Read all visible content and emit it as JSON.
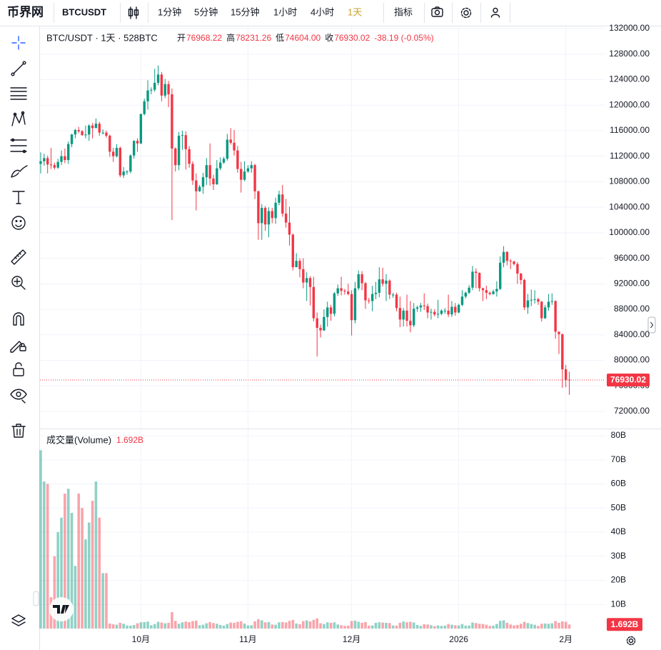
{
  "toolbar": {
    "logo": "币界网",
    "symbol": "BTCUSDT",
    "intervals": [
      "1分钟",
      "5分钟",
      "15分钟",
      "1小时",
      "4小时",
      "1天"
    ],
    "active_interval": 5,
    "indicators": "指标"
  },
  "chart_data": {
    "type": "candlestick",
    "title": "BTC/USDT · 1天 · 528BTC",
    "legend": [
      {
        "key": "开",
        "value": "76968.22"
      },
      {
        "key": "高",
        "value": "78231.26"
      },
      {
        "key": "低",
        "value": "74604.00"
      },
      {
        "key": "收",
        "value": "76930.02"
      }
    ],
    "change": "-38.19 (-0.05%)",
    "up_color": "#089981",
    "down_color": "#f23645",
    "grid": true,
    "categories": [
      null,
      null,
      null,
      null,
      null,
      null,
      null,
      null,
      null,
      null,
      null,
      null,
      null,
      null,
      null,
      null,
      null,
      null,
      null,
      null,
      null,
      null,
      null,
      null,
      null,
      null,
      null,
      null,
      null,
      "10月",
      null,
      null,
      null,
      null,
      null,
      null,
      null,
      null,
      null,
      null,
      null,
      null,
      null,
      null,
      null,
      null,
      null,
      null,
      null,
      null,
      null,
      null,
      null,
      null,
      null,
      null,
      null,
      null,
      null,
      null,
      "11月",
      null,
      null,
      null,
      null,
      null,
      null,
      null,
      null,
      null,
      null,
      null,
      null,
      null,
      null,
      null,
      null,
      null,
      null,
      null,
      null,
      null,
      null,
      null,
      null,
      null,
      null,
      null,
      null,
      null,
      "12月",
      null,
      null,
      null,
      null,
      null,
      null,
      null,
      null,
      null,
      null,
      null,
      null,
      null,
      null,
      null,
      null,
      null,
      null,
      null,
      null,
      null,
      null,
      null,
      null,
      null,
      null,
      null,
      null,
      null,
      null,
      "2026",
      null,
      null,
      null,
      null,
      null,
      null,
      null,
      null,
      null,
      null,
      null,
      null,
      null,
      null,
      null,
      null,
      null,
      null,
      null,
      null,
      null,
      null,
      null,
      null,
      null,
      null,
      null,
      null,
      null,
      null,
      "2月",
      null
    ],
    "open": [
      110800,
      111200,
      111700,
      110700,
      110600,
      110200,
      111100,
      112000,
      111400,
      113900,
      115400,
      116100,
      115900,
      115300,
      115400,
      116800,
      116400,
      117100,
      115700,
      115700,
      115200,
      112700,
      112000,
      113300,
      109000,
      109600,
      109600,
      112100,
      114400,
      114000,
      118600,
      120600,
      122300,
      122400,
      123500,
      124800,
      121500,
      123300,
      121700,
      113200,
      110600,
      115200,
      115300,
      113100,
      110800,
      108200,
      106500,
      107200,
      108700,
      110600,
      108500,
      107600,
      110100,
      111000,
      111600,
      114600,
      114100,
      112900,
      110000,
      108300,
      109600,
      110100,
      110600,
      106500,
      101500,
      103900,
      101300,
      103400,
      102300,
      104700,
      106000,
      103000,
      101600,
      99700,
      94600,
      95600,
      94300,
      92200,
      92900,
      91500,
      86600,
      85100,
      84700,
      86800,
      88300,
      87300,
      90500,
      91300,
      90900,
      90800,
      90400,
      86300,
      91300,
      93500,
      92100,
      89400,
      89300,
      90400,
      90600,
      92700,
      92000,
      92500,
      90300,
      90300,
      88200,
      86400,
      87800,
      86200,
      85500,
      88100,
      88300,
      88600,
      88500,
      87500,
      87600,
      87200,
      87300,
      87800,
      87800,
      87200,
      88400,
      87500,
      88700,
      90000,
      90600,
      91400,
      93900,
      93700,
      91300,
      91000,
      90600,
      90400,
      90800,
      91200,
      95300,
      97000,
      95600,
      95500,
      95100,
      93600,
      92600,
      88300,
      89400,
      89500,
      89600,
      89200,
      86600,
      88300,
      89200,
      89300,
      84500,
      84100,
      78600,
      76968.22
    ],
    "high": [
      112600,
      112400,
      112100,
      113300,
      111000,
      111600,
      112900,
      113200,
      114300,
      115500,
      116300,
      116600,
      116100,
      116800,
      117000,
      117200,
      117900,
      117400,
      116200,
      116000,
      115400,
      113300,
      113900,
      113500,
      110300,
      109800,
      112300,
      114500,
      114800,
      118700,
      121000,
      123900,
      122800,
      125700,
      126200,
      125200,
      124100,
      123800,
      122600,
      113400,
      115800,
      116000,
      115900,
      113600,
      111200,
      109300,
      107500,
      109400,
      111700,
      114000,
      109100,
      111400,
      111800,
      111900,
      115500,
      116400,
      116100,
      113600,
      111100,
      111200,
      110600,
      111200,
      110800,
      106600,
      104500,
      104200,
      104000,
      103900,
      105500,
      106600,
      107500,
      105300,
      104100,
      99900,
      96800,
      96000,
      96000,
      93800,
      93200,
      93100,
      87500,
      85600,
      88000,
      89200,
      88700,
      90700,
      91900,
      93100,
      91200,
      92000,
      91000,
      92300,
      94100,
      94000,
      92300,
      89800,
      91700,
      92300,
      94600,
      94500,
      93500,
      92700,
      90600,
      90600,
      90000,
      88200,
      90300,
      89300,
      89000,
      88600,
      89000,
      90500,
      88900,
      88100,
      88000,
      89500,
      88000,
      88200,
      90300,
      89300,
      89000,
      88900,
      91000,
      90800,
      91800,
      94800,
      94400,
      93800,
      91400,
      91700,
      90800,
      91100,
      92400,
      96300,
      97900,
      97100,
      95900,
      95600,
      95400,
      93700,
      92800,
      90400,
      91100,
      91000,
      89800,
      89300,
      88700,
      90400,
      90500,
      89400,
      84500,
      84200,
      79300,
      78231.26
    ],
    "low": [
      109300,
      110500,
      109300,
      110000,
      109900,
      110000,
      110600,
      110900,
      110800,
      113400,
      114800,
      115600,
      115200,
      114800,
      114400,
      114800,
      116400,
      115200,
      115400,
      114900,
      111900,
      111100,
      111800,
      108700,
      108600,
      109100,
      109300,
      111600,
      112700,
      113900,
      118400,
      119300,
      121700,
      122100,
      123100,
      120600,
      121100,
      119700,
      102000,
      109600,
      109800,
      113000,
      109900,
      110200,
      107500,
      103500,
      106400,
      106100,
      107500,
      107400,
      106700,
      107500,
      109800,
      110800,
      111300,
      113800,
      112100,
      109400,
      106300,
      108100,
      109400,
      109400,
      105300,
      98900,
      98900,
      100300,
      99300,
      101500,
      101400,
      104300,
      102500,
      100800,
      98000,
      94100,
      94600,
      93000,
      91300,
      89300,
      88600,
      86100,
      80600,
      83600,
      84600,
      85300,
      86200,
      86900,
      90100,
      90200,
      90300,
      90200,
      83900,
      85800,
      91000,
      91000,
      88100,
      88900,
      87700,
      89600,
      89900,
      91600,
      89300,
      89600,
      89800,
      87700,
      85200,
      85300,
      85300,
      84400,
      85200,
      87600,
      87600,
      87900,
      86600,
      86400,
      86900,
      86600,
      87100,
      87300,
      86800,
      86800,
      87000,
      87400,
      88500,
      89700,
      90400,
      91000,
      91300,
      90800,
      89300,
      89600,
      90200,
      90300,
      90000,
      91000,
      94600,
      94900,
      94300,
      94900,
      92000,
      91900,
      87900,
      87300,
      88500,
      88900,
      88700,
      86100,
      86500,
      87800,
      88700,
      83400,
      81000,
      75700,
      75800,
      74604
    ],
    "close": [
      111200,
      111700,
      110700,
      110600,
      110200,
      111100,
      112000,
      111400,
      113900,
      115400,
      116100,
      115900,
      115300,
      115400,
      116800,
      116400,
      117100,
      115700,
      115700,
      115200,
      112700,
      112000,
      113300,
      109000,
      109600,
      109600,
      112100,
      114400,
      114000,
      118600,
      120600,
      122300,
      122400,
      123500,
      124800,
      121500,
      123300,
      121700,
      113200,
      110600,
      115200,
      115300,
      113100,
      110800,
      108200,
      106500,
      107200,
      108700,
      110600,
      108500,
      107600,
      110100,
      111000,
      111600,
      114600,
      114100,
      112900,
      110000,
      108300,
      109600,
      110100,
      110600,
      106500,
      101500,
      103900,
      101300,
      103400,
      102300,
      104700,
      106000,
      103000,
      101600,
      99700,
      94600,
      95600,
      94300,
      92200,
      92900,
      91500,
      86600,
      85100,
      84700,
      86800,
      88300,
      87300,
      90500,
      91300,
      90900,
      90800,
      90400,
      86300,
      91300,
      93500,
      92100,
      89400,
      89300,
      90400,
      90600,
      92700,
      92000,
      92500,
      90300,
      90300,
      88200,
      86400,
      87800,
      86200,
      85500,
      88100,
      88300,
      88600,
      88500,
      87500,
      87600,
      87200,
      87300,
      87800,
      87800,
      87200,
      88400,
      87500,
      88700,
      90000,
      90600,
      91400,
      93900,
      93700,
      91300,
      91000,
      90600,
      90400,
      90800,
      91200,
      95300,
      97000,
      95600,
      95500,
      95100,
      93600,
      92600,
      88300,
      89400,
      89500,
      89600,
      89200,
      86600,
      88300,
      89200,
      89300,
      84500,
      84100,
      78600,
      76968.22,
      76930.02
    ],
    "ylim": [
      72000,
      132000
    ],
    "yticks": [
      {
        "value": 72000,
        "label": "72000.00"
      },
      {
        "value": 76000,
        "label": "76000.00"
      },
      {
        "value": 80000,
        "label": "80000.00"
      },
      {
        "value": 84000,
        "label": "84000.00"
      },
      {
        "value": 88000,
        "label": "88000.00"
      },
      {
        "value": 92000,
        "label": "92000.00"
      },
      {
        "value": 96000,
        "label": "96000.00"
      },
      {
        "value": 100000,
        "label": "100000.00"
      },
      {
        "value": 104000,
        "label": "104000.00"
      },
      {
        "value": 108000,
        "label": "108000.00"
      },
      {
        "value": 112000,
        "label": "112000.00"
      },
      {
        "value": 116000,
        "label": "116000.00"
      },
      {
        "value": 120000,
        "label": "120000.00"
      },
      {
        "value": 124000,
        "label": "124000.00"
      },
      {
        "value": 128000,
        "label": "128000.00"
      },
      {
        "value": 132000,
        "label": "132000.00"
      }
    ],
    "volume": {
      "name": "成交量(Volume)",
      "axis": "y2",
      "last_label": "1.692B",
      "values": [
        74,
        61,
        60,
        13,
        30,
        40,
        46,
        56,
        58,
        48,
        26,
        56,
        50,
        37,
        44,
        53,
        61,
        46,
        23,
        23,
        2.1,
        1.8,
        1.6,
        2.4,
        2.0,
        1.3,
        1.2,
        1.5,
        2.2,
        2.6,
        2.7,
        2.9,
        1.4,
        1.9,
        2.8,
        2.5,
        2.2,
        2.4,
        6.8,
        3.2,
        2.0,
        2.6,
        2.9,
        2.7,
        3.1,
        3.3,
        1.4,
        1.6,
        2.2,
        2.7,
        2.3,
        2.0,
        1.5,
        1.2,
        1.9,
        2.5,
        2.4,
        2.8,
        3.0,
        2.1,
        1.3,
        1.4,
        3.0,
        3.9,
        3.4,
        2.6,
        2.7,
        1.7,
        1.6,
        2.6,
        2.7,
        2.5,
        3.2,
        3.6,
        2.1,
        1.8,
        3.1,
        3.4,
        3.0,
        3.6,
        4.2,
        2.2,
        1.9,
        2.6,
        2.4,
        2.6,
        1.7,
        1.4,
        1.1,
        1.2,
        3.1,
        3.3,
        2.8,
        2.4,
        2.7,
        1.2,
        1.3,
        2.4,
        2.6,
        2.5,
        2.4,
        2.3,
        1.3,
        1.2,
        2.4,
        2.9,
        2.6,
        2.8,
        2.5,
        1.5,
        1.1,
        1.8,
        1.7,
        1.4,
        1.0,
        1.3,
        1.1,
        1.2,
        1.9,
        1.6,
        1.4,
        1.3,
        1.9,
        1.2,
        1.3,
        2.5,
        2.3,
        2.0,
        1.9,
        1.6,
        1.1,
        1.2,
        1.9,
        3.2,
        3.4,
        2.4,
        1.7,
        1.3,
        1.5,
        2.0,
        2.8,
        2.3,
        1.9,
        1.6,
        1.1,
        2.0,
        2.1,
        2.0,
        2.2,
        3.1,
        2.4,
        3.0,
        2.8,
        1.692
      ]
    },
    "y2lim": [
      0,
      80
    ],
    "y2ticks": [
      {
        "value": 10,
        "label": "10B"
      },
      {
        "value": 20,
        "label": "20B"
      },
      {
        "value": 30,
        "label": "30B"
      },
      {
        "value": 40,
        "label": "40B"
      },
      {
        "value": 50,
        "label": "50B"
      },
      {
        "value": 60,
        "label": "60B"
      },
      {
        "value": 70,
        "label": "70B"
      },
      {
        "value": 80,
        "label": "80B"
      }
    ]
  }
}
